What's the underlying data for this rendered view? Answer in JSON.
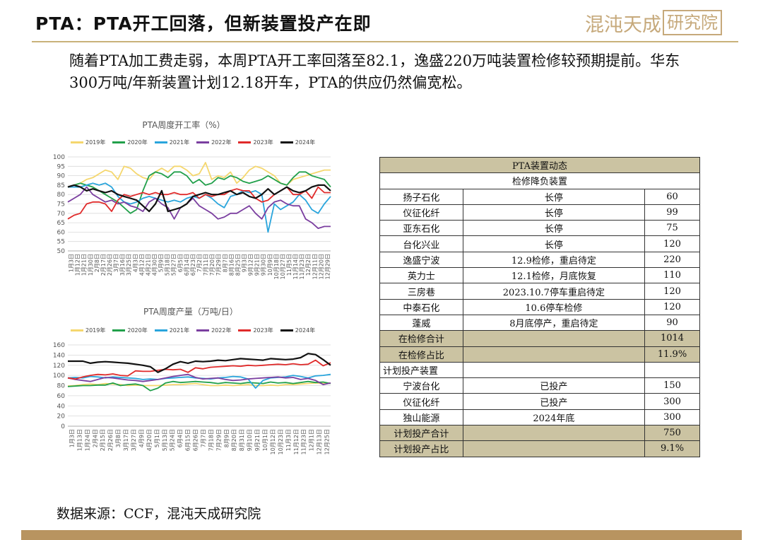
{
  "header": {
    "title": "PTA：PTA开工回落，但新装置投产在即",
    "logo_text": "混沌天成",
    "logo_box_text": "研究院"
  },
  "intro_text": "随着PTA加工费走弱，本周PTA开工率回落至82.1，逸盛220万吨装置检修较预期提前。华东300万吨/年新装置计划12.18开车，PTA的供应仍然偏宽松。",
  "source_text": "数据来源：CCF，混沌天成研究院",
  "colors": {
    "s2019": "#f5d76e",
    "s2020": "#22a04b",
    "s2021": "#2aa5dc",
    "s2022": "#7b3fa0",
    "s2023": "#e02b2b",
    "s2024": "#111111",
    "gold": "#c6a97b",
    "table_header": "#cbc3a2"
  },
  "chart_data": [
    {
      "type": "line",
      "title": "PTA周度开工率（%）",
      "ylim": [
        50,
        100
      ],
      "yticks": [
        "50",
        "55",
        "60",
        "65",
        "70",
        "75",
        "80",
        "85",
        "90",
        "95",
        "100"
      ],
      "grid": true,
      "legend": "top",
      "xticks": [
        "1月3日",
        "1月12日",
        "1月21日",
        "1月30日",
        "2月8日",
        "2月17日",
        "2月26日",
        "3月7日",
        "3月16日",
        "3月25日",
        "4月3日",
        "4月12日",
        "4月21日",
        "4月30日",
        "5月9日",
        "5月18日",
        "5月27日",
        "6月5日",
        "6月14日",
        "6月23日",
        "7月2日",
        "7月11日",
        "7月20日",
        "7月29日",
        "8月7日",
        "8月16日",
        "8月25日",
        "9月3日",
        "9月12日",
        "9月21日",
        "9月30日",
        "10月9日",
        "10月18日",
        "10月27日",
        "11月5日",
        "11月14日",
        "11月23日",
        "12月2日",
        "12月11日",
        "12月20日",
        "12月29日"
      ],
      "series": [
        {
          "name": "2019年",
          "values": [
            84,
            85,
            86,
            88,
            89,
            91,
            93,
            92,
            88,
            95,
            94,
            91,
            89,
            88,
            92,
            94,
            92,
            95,
            95,
            93,
            90,
            91,
            97,
            88,
            90,
            89,
            92,
            86,
            89,
            93,
            95,
            94,
            92,
            90,
            86,
            85,
            88,
            89,
            90,
            91,
            92,
            93,
            93
          ]
        },
        {
          "name": "2020年",
          "values": [
            84,
            85,
            86,
            85,
            84,
            82,
            80,
            78,
            76,
            73,
            70,
            72,
            82,
            90,
            92,
            91,
            89,
            92,
            92,
            90,
            86,
            88,
            85,
            86,
            89,
            88,
            90,
            89,
            87,
            86,
            87,
            88,
            90,
            88,
            86,
            85,
            89,
            92,
            92,
            90,
            89,
            88,
            84
          ]
        },
        {
          "name": "2021年",
          "values": [
            84,
            84,
            84,
            85,
            86,
            85,
            86,
            84,
            79,
            76,
            75,
            76,
            78,
            79,
            78,
            77,
            76,
            77,
            76,
            78,
            79,
            78,
            80,
            78,
            75,
            73,
            79,
            80,
            82,
            81,
            82,
            80,
            60,
            75,
            72,
            74,
            76,
            80,
            77,
            72,
            70,
            75,
            79
          ]
        },
        {
          "name": "2022年",
          "values": [
            76,
            78,
            80,
            84,
            80,
            78,
            76,
            77,
            75,
            76,
            74,
            73,
            71,
            76,
            78,
            75,
            73,
            67,
            73,
            75,
            78,
            74,
            72,
            70,
            67,
            68,
            70,
            70,
            72,
            74,
            70,
            67,
            73,
            76,
            77,
            75,
            74,
            74,
            67,
            65,
            62,
            63,
            63
          ]
        },
        {
          "name": "2023年",
          "values": [
            67,
            69,
            70,
            75,
            76,
            76,
            75,
            71,
            77,
            80,
            79,
            80,
            81,
            80,
            81,
            80,
            80,
            81,
            80,
            80,
            81,
            78,
            80,
            79,
            80,
            80,
            82,
            83,
            82,
            82,
            78,
            76,
            77,
            80,
            82,
            84,
            80,
            80,
            82,
            78,
            84,
            81,
            81
          ]
        },
        {
          "name": "2024年",
          "values": [
            84,
            85,
            84,
            82,
            83,
            82,
            81,
            82,
            80,
            79,
            78,
            77,
            74,
            71,
            75,
            82,
            71,
            72,
            73,
            75,
            79,
            80,
            81,
            80,
            80,
            81,
            82,
            80,
            81,
            79,
            78,
            80,
            83,
            80,
            82,
            84,
            82,
            81,
            82,
            84,
            85,
            85,
            82
          ]
        }
      ]
    },
    {
      "type": "line",
      "title": "PTA周度产量（万吨/日）",
      "ylim": [
        0,
        160
      ],
      "yticks": [
        "0",
        "20",
        "40",
        "60",
        "80",
        "100",
        "120",
        "140",
        "160"
      ],
      "grid": true,
      "legend": "top",
      "xticks": [
        "1月3日",
        "1月13日",
        "1月24日",
        "2月4日",
        "2月15日",
        "2月26日",
        "3月8日",
        "3月17日",
        "3月27日",
        "4月9日",
        "4月20日",
        "5月1日",
        "5月13日",
        "5月24日",
        "6月4日",
        "6月15日",
        "6月26日",
        "7月7日",
        "7月18日",
        "7月29日",
        "8月9日",
        "8月20日",
        "8月31日",
        "9月10日",
        "9月21日",
        "10月1日",
        "10月12日",
        "10月23日",
        "11月3日",
        "11月12日",
        "11月23日",
        "12月1日",
        "12月13日",
        "12月25日"
      ],
      "series": [
        {
          "name": "2019年",
          "values": [
            79,
            80,
            82,
            83,
            82,
            84,
            83,
            82,
            80,
            81,
            80,
            80,
            80,
            81,
            82,
            82,
            83,
            84,
            82,
            80,
            80,
            81,
            80,
            81,
            82,
            80,
            80,
            81,
            80,
            82,
            82,
            83,
            84,
            85,
            84,
            85
          ]
        },
        {
          "name": "2020年",
          "values": [
            78,
            79,
            80,
            80,
            81,
            81,
            85,
            80,
            82,
            83,
            80,
            70,
            75,
            85,
            88,
            86,
            87,
            88,
            87,
            86,
            84,
            86,
            85,
            84,
            86,
            85,
            84,
            87,
            85,
            86,
            84,
            86,
            88,
            86,
            87,
            84
          ]
        },
        {
          "name": "2021年",
          "values": [
            95,
            96,
            95,
            98,
            97,
            95,
            97,
            96,
            95,
            94,
            92,
            93,
            92,
            94,
            95,
            96,
            97,
            95,
            94,
            93,
            95,
            96,
            98,
            97,
            93,
            75,
            90,
            95,
            96,
            97,
            100,
            98,
            95,
            99,
            100,
            102
          ]
        },
        {
          "name": "2022年",
          "values": [
            95,
            92,
            90,
            88,
            92,
            96,
            95,
            93,
            91,
            90,
            88,
            90,
            92,
            95,
            98,
            100,
            102,
            96,
            93,
            94,
            95,
            92,
            90,
            91,
            93,
            94,
            95,
            96,
            97,
            95,
            96,
            92,
            94,
            90,
            82,
            85
          ]
        },
        {
          "name": "2023年",
          "values": [
            95,
            93,
            97,
            100,
            102,
            101,
            103,
            100,
            99,
            109,
            108,
            108,
            110,
            112,
            111,
            112,
            106,
            115,
            113,
            116,
            117,
            118,
            119,
            118,
            120,
            119,
            120,
            121,
            122,
            121,
            123,
            121,
            122,
            130,
            119,
            125
          ]
        },
        {
          "name": "2024年",
          "values": [
            128,
            128,
            128,
            124,
            126,
            127,
            126,
            125,
            124,
            122,
            120,
            117,
            106,
            113,
            122,
            127,
            124,
            128,
            127,
            128,
            130,
            129,
            131,
            133,
            132,
            131,
            130,
            133,
            132,
            131,
            132,
            135,
            143,
            141,
            131,
            120
          ]
        }
      ]
    }
  ],
  "table": {
    "title": "PTA装置动态",
    "section1": "检修降负装置",
    "maint_rows": [
      {
        "name": "扬子石化",
        "status": "长停",
        "cap": "60"
      },
      {
        "name": "仪征化纤",
        "status": "长停",
        "cap": "99"
      },
      {
        "name": "亚东石化",
        "status": "长停",
        "cap": "75"
      },
      {
        "name": "台化兴业",
        "status": "长停",
        "cap": "120"
      },
      {
        "name": "逸盛宁波",
        "status": "12.9检修，重启待定",
        "cap": "220"
      },
      {
        "name": "英力士",
        "status": "12.1检修，月底恢复",
        "cap": "110"
      },
      {
        "name": "三房巷",
        "status": "2023.10.7停车重启待定",
        "cap": "120"
      },
      {
        "name": "中泰石化",
        "status": "10.6停车检修",
        "cap": "120"
      },
      {
        "name": "蓬威",
        "status": "8月底停产，重启待定",
        "cap": "90"
      }
    ],
    "maint_total_label": "在检修合计",
    "maint_total_value": "1014",
    "maint_ratio_label": "在检修占比",
    "maint_ratio_value": "11.9%",
    "section2": "计划投产装置",
    "plan_rows": [
      {
        "name": "宁波台化",
        "status": "已投产",
        "cap": "150"
      },
      {
        "name": "仪征化纤",
        "status": "已投产",
        "cap": "300"
      },
      {
        "name": "独山能源",
        "status": "2024年底",
        "cap": "300"
      }
    ],
    "plan_total_label": "计划投产合计",
    "plan_total_value": "750",
    "plan_ratio_label": "计划投产占比",
    "plan_ratio_value": "9.1%"
  }
}
